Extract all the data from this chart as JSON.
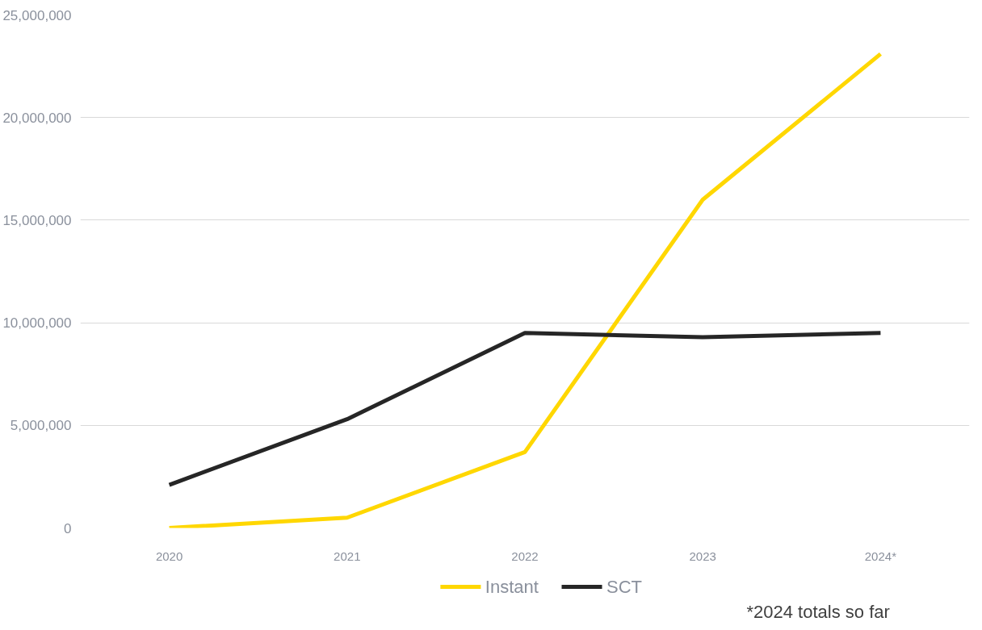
{
  "chart_data": {
    "type": "line",
    "categories": [
      "2020",
      "2021",
      "2022",
      "2023",
      "2024*"
    ],
    "series": [
      {
        "name": "Instant",
        "color": "#ffd700",
        "values": [
          0,
          500000,
          3700000,
          16000000,
          23100000
        ]
      },
      {
        "name": "SCT",
        "color": "#262626",
        "values": [
          2100000,
          5300000,
          9500000,
          9300000,
          9500000
        ]
      }
    ],
    "ylim": [
      0,
      25000000
    ],
    "yticks": [
      {
        "value": 0,
        "label": "0"
      },
      {
        "value": 5000000,
        "label": "5,000,000"
      },
      {
        "value": 10000000,
        "label": "10,000,000"
      },
      {
        "value": 15000000,
        "label": "15,000,000"
      },
      {
        "value": 20000000,
        "label": "20,000,000"
      },
      {
        "value": 25000000,
        "label": "25,000,000"
      }
    ],
    "grid": "y",
    "legend": "bottom",
    "marker": "none",
    "line_style": "solid",
    "annotations": [
      "*2024 totals so far"
    ]
  }
}
